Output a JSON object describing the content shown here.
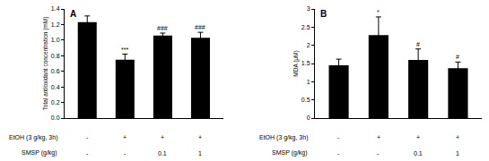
{
  "chart_data": [
    {
      "type": "bar",
      "title": "A",
      "y_label": "Total antioxidant concentration (mM)",
      "categories": [
        null,
        null,
        null,
        null
      ],
      "values": [
        1.23,
        0.75,
        1.06,
        1.03
      ],
      "errors": [
        0.08,
        0.07,
        0.03,
        0.07
      ],
      "annotations": [
        null,
        "***",
        "###",
        "###"
      ],
      "color": "#000000",
      "ylim": [
        0,
        1.4
      ],
      "yticks": [
        {
          "value": 0,
          "label": "0.0"
        },
        0.2,
        0.4,
        0.6,
        0.8,
        {
          "value": 1,
          "label": "1.0"
        },
        1.2,
        1.4
      ],
      "tick_labels": "y",
      "grid": false,
      "treatments": [
        {
          "label": "EtOH (3 g/kg, 3h)",
          "cells": [
            "-",
            "+",
            "+",
            "+"
          ]
        },
        {
          "label": "SMSP (g/kg)",
          "cells": [
            "-",
            "-",
            "0.1",
            "1"
          ]
        }
      ]
    },
    {
      "type": "bar",
      "title": "B",
      "y_label": "MDA (μM)",
      "categories": [
        null,
        null,
        null,
        null
      ],
      "values": [
        1.45,
        2.28,
        1.6,
        1.37
      ],
      "errors": [
        0.17,
        0.5,
        0.3,
        0.17
      ],
      "annotations": [
        null,
        "*",
        "#",
        "#"
      ],
      "color": "#000000",
      "ylim": [
        0,
        3
      ],
      "yticks": [
        0,
        0.5,
        1,
        1.5,
        2,
        2.5,
        3
      ],
      "tick_labels": "y",
      "grid": false,
      "treatments": [
        {
          "label": "EtOH (3 g/kg, 3h)",
          "cells": [
            "-",
            "+",
            "+",
            "+"
          ]
        },
        {
          "label": "SMSP (g/kg)",
          "cells": [
            "-",
            "-",
            "0.1",
            "1"
          ]
        }
      ]
    }
  ]
}
